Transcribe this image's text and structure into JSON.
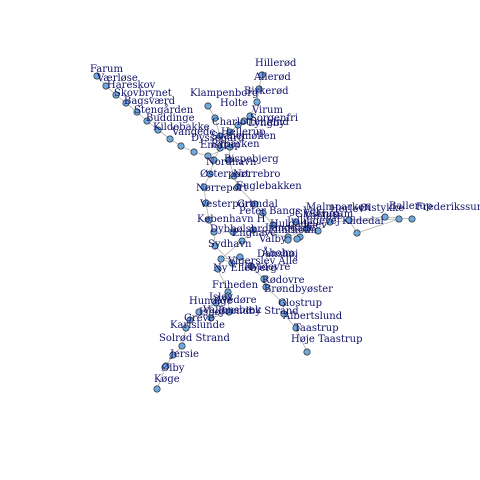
{
  "graph": {
    "node_color": "#6fa8dc",
    "node_stroke": "#1a1a1a",
    "label_color": "#10106a",
    "edge_color": "#b0b0b0",
    "nodes": [
      {
        "id": "farum",
        "label": "Farum"
      },
      {
        "id": "vaerloese",
        "label": "Værløse"
      },
      {
        "id": "hareskov",
        "label": "Hareskov"
      },
      {
        "id": "skovbrynet",
        "label": "Skovbrynet"
      },
      {
        "id": "bagsvaerd",
        "label": "Bagsværd"
      },
      {
        "id": "stengaarden",
        "label": "Stengården"
      },
      {
        "id": "buddinge",
        "label": "Buddinge"
      },
      {
        "id": "kildebakke",
        "label": "Kildebakke"
      },
      {
        "id": "vangede",
        "label": "Vangede"
      },
      {
        "id": "dyssegaard",
        "label": "Dyssegård"
      },
      {
        "id": "emdrup",
        "label": "Emdrup"
      },
      {
        "id": "hilleroed",
        "label": "Hillerød"
      },
      {
        "id": "alleroed",
        "label": "Allerød"
      },
      {
        "id": "birkeroed",
        "label": "Birkerød"
      },
      {
        "id": "klampenborg",
        "label": "Klampenborg"
      },
      {
        "id": "holte",
        "label": "Holte"
      },
      {
        "id": "virum",
        "label": "Virum"
      },
      {
        "id": "sorgenfri",
        "label": "Sorgenfri"
      },
      {
        "id": "lyngby",
        "label": "Lyngby"
      },
      {
        "id": "charlottenlund",
        "label": "Charlottenlund"
      },
      {
        "id": "hellerup",
        "label": "Hellerup"
      },
      {
        "id": "svanemoellen",
        "label": "Svanemøllen"
      },
      {
        "id": "ryparken",
        "label": "Ryparken"
      },
      {
        "id": "bispebjerg",
        "label": "Bispebjerg"
      },
      {
        "id": "nordhavn",
        "label": "Nordhavn"
      },
      {
        "id": "oesterport",
        "label": "Østerport"
      },
      {
        "id": "noerrebro",
        "label": "Nørrebro"
      },
      {
        "id": "noerreport",
        "label": "Nørreport"
      },
      {
        "id": "fuglebakken",
        "label": "Fuglebakken"
      },
      {
        "id": "vesterport",
        "label": "Vesterport"
      },
      {
        "id": "groendal",
        "label": "Grøndal"
      },
      {
        "id": "kobenhavn_h",
        "label": "København H"
      },
      {
        "id": "peter_bangs_vej",
        "label": "Peter Bangs Vej"
      },
      {
        "id": "dybboelsbro",
        "label": "Dybbølsbro"
      },
      {
        "id": "enghave",
        "label": "Enghave"
      },
      {
        "id": "valby",
        "label": "Valby"
      },
      {
        "id": "flintholm",
        "label": "Flintholm"
      },
      {
        "id": "langgade",
        "label": "Langgade"
      },
      {
        "id": "sydhavn",
        "label": "Sydhavn"
      },
      {
        "id": "danshoej",
        "label": "Danshøj"
      },
      {
        "id": "malmparken",
        "label": "Malmparken"
      },
      {
        "id": "ballerup",
        "label": "Ballerup"
      },
      {
        "id": "glostrup_frederikssund",
        "label": "Glostrup"
      },
      {
        "id": "frederikssund",
        "label": "Frederikssund"
      },
      {
        "id": "oelstykke",
        "label": "Ølstykke"
      },
      {
        "id": "kildedal",
        "label": "Kildedal"
      },
      {
        "id": "herlev",
        "label": "Herlev"
      },
      {
        "id": "husum",
        "label": "Husum"
      },
      {
        "id": "islev",
        "label": "Islev"
      },
      {
        "id": "vanloese",
        "label": "Vanløse"
      },
      {
        "id": "jyllingevej",
        "label": "Jyllingevej"
      },
      {
        "id": "hulgade",
        "label": "Hulgade"
      },
      {
        "id": "vigerslev",
        "label": "Vigerslev Allé"
      },
      {
        "id": "ny_ellebjerg",
        "label": "Ny Ellebjerg"
      },
      {
        "id": "aaholm",
        "label": "Åholm"
      },
      {
        "id": "hvidovre",
        "label": "Hvidovre"
      },
      {
        "id": "friheden",
        "label": "Friheden"
      },
      {
        "id": "rodovre",
        "label": "Rødovre"
      },
      {
        "id": "broendbyoester",
        "label": "Brøndbyøster"
      },
      {
        "id": "aavedoere",
        "label": "Avedøre"
      },
      {
        "id": "islev2",
        "label": "Islev"
      },
      {
        "id": "hundige",
        "label": "Hundige"
      },
      {
        "id": "brondby_strand",
        "label": "Brøndby Strand"
      },
      {
        "id": "vallensbaek",
        "label": "Vallensbæk"
      },
      {
        "id": "ishoj",
        "label": "Ishøj"
      },
      {
        "id": "greve",
        "label": "Greve"
      },
      {
        "id": "karlslunde",
        "label": "Karlslunde"
      },
      {
        "id": "solroed",
        "label": "Solrød Strand"
      },
      {
        "id": "jersie",
        "label": "Jersie"
      },
      {
        "id": "oelby",
        "label": "Ølby"
      },
      {
        "id": "koege",
        "label": "Køge"
      },
      {
        "id": "glostrup",
        "label": "Glostrup"
      },
      {
        "id": "albertslund",
        "label": "Albertslund"
      },
      {
        "id": "taastrup",
        "label": "Taastrup"
      },
      {
        "id": "hoeje_taastrup",
        "label": "Høje Taastrup"
      }
    ],
    "edges": [
      [
        "farum",
        "vaerloese"
      ],
      [
        "vaerloese",
        "hareskov"
      ],
      [
        "hareskov",
        "skovbrynet"
      ],
      [
        "skovbrynet",
        "bagsvaerd"
      ],
      [
        "bagsvaerd",
        "stengaarden"
      ],
      [
        "stengaarden",
        "buddinge"
      ],
      [
        "buddinge",
        "kildebakke"
      ],
      [
        "kildebakke",
        "vangede"
      ],
      [
        "vangede",
        "dyssegaard"
      ],
      [
        "dyssegaard",
        "emdrup"
      ],
      [
        "emdrup",
        "ryparken"
      ],
      [
        "hilleroed",
        "alleroed"
      ],
      [
        "alleroed",
        "birkeroed"
      ],
      [
        "birkeroed",
        "holte"
      ],
      [
        "holte",
        "virum"
      ],
      [
        "virum",
        "sorgenfri"
      ],
      [
        "sorgenfri",
        "lyngby"
      ],
      [
        "lyngby",
        "hellerup"
      ],
      [
        "klampenborg",
        "charlottenlund"
      ],
      [
        "charlottenlund",
        "hellerup"
      ],
      [
        "hellerup",
        "svanemoellen"
      ],
      [
        "svanemoellen",
        "nordhavn"
      ],
      [
        "nordhavn",
        "oesterport"
      ],
      [
        "ryparken",
        "bispebjerg"
      ],
      [
        "bispebjerg",
        "noerrebro"
      ],
      [
        "noerrebro",
        "fuglebakken"
      ],
      [
        "fuglebakken",
        "groendal"
      ],
      [
        "oesterport",
        "noerreport"
      ],
      [
        "noerreport",
        "vesterport"
      ],
      [
        "vesterport",
        "kobenhavn_h"
      ],
      [
        "kobenhavn_h",
        "dybboelsbro"
      ],
      [
        "dybboelsbro",
        "enghave"
      ],
      [
        "enghave",
        "valby"
      ],
      [
        "dybboelsbro",
        "sydhavn"
      ],
      [
        "groendal",
        "flintholm"
      ],
      [
        "flintholm",
        "peter_bangs_vej"
      ],
      [
        "valby",
        "langgade"
      ],
      [
        "valby",
        "danshoej"
      ],
      [
        "danshoej",
        "ny_ellebjerg"
      ],
      [
        "langgade",
        "vanloese"
      ],
      [
        "vanloese",
        "husum"
      ],
      [
        "husum",
        "herlev"
      ],
      [
        "herlev",
        "ballerup"
      ],
      [
        "ballerup",
        "malmparken"
      ],
      [
        "malmparken",
        "kildedal"
      ],
      [
        "kildedal",
        "oelstykke"
      ],
      [
        "oelstykke",
        "frederikssund"
      ],
      [
        "jyllingevej",
        "islev"
      ],
      [
        "islev",
        "hulgade"
      ],
      [
        "sydhavn",
        "vigerslev"
      ],
      [
        "vigerslev",
        "ny_ellebjerg"
      ],
      [
        "ny_ellebjerg",
        "aaholm"
      ],
      [
        "aaholm",
        "hvidovre"
      ],
      [
        "hvidovre",
        "rodovre"
      ],
      [
        "rodovre",
        "broendbyoester"
      ],
      [
        "broendbyoester",
        "glostrup"
      ],
      [
        "glostrup",
        "albertslund"
      ],
      [
        "albertslund",
        "taastrup"
      ],
      [
        "taastrup",
        "hoeje_taastrup"
      ],
      [
        "ny_ellebjerg",
        "friheden"
      ],
      [
        "friheden",
        "aavedoere"
      ],
      [
        "aavedoere",
        "brondby_strand"
      ],
      [
        "brondby_strand",
        "vallensbaek"
      ],
      [
        "vallensbaek",
        "ishoj"
      ],
      [
        "ishoj",
        "hundige"
      ],
      [
        "hundige",
        "greve"
      ],
      [
        "greve",
        "karlslunde"
      ],
      [
        "karlslunde",
        "solroed"
      ],
      [
        "solroed",
        "jersie"
      ],
      [
        "jersie",
        "oelby"
      ],
      [
        "oelby",
        "koege"
      ]
    ]
  }
}
